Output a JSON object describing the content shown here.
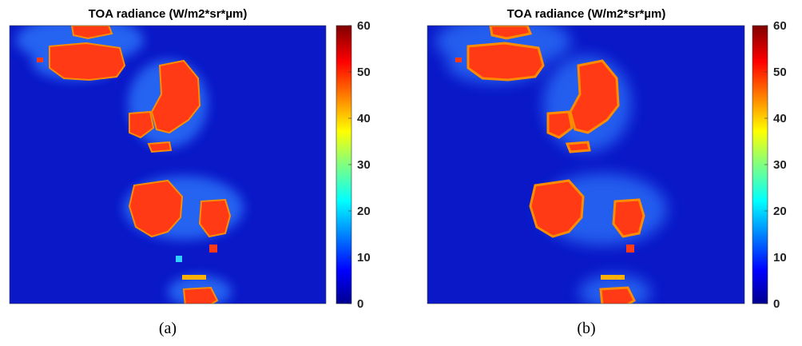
{
  "chart_data": [
    {
      "type": "heatmap",
      "title": "TOA radiance (W/m2*sr*µm)",
      "panel_label": "(a)",
      "colorbar": {
        "colormap": "jet",
        "range": [
          0,
          60
        ],
        "ticks": [
          "0",
          "10",
          "20",
          "30",
          "40",
          "50",
          "60"
        ]
      },
      "background_value": 5,
      "grid": false,
      "regions_description": "Bright cloud patches (~50 W/m2*sr*µm) on a dark ocean background (~3-8 W/m2*sr*µm)"
    },
    {
      "type": "heatmap",
      "title": "TOA radiance (W/m2*sr*µm)",
      "panel_label": "(b)",
      "colorbar": {
        "colormap": "jet",
        "range": [
          0,
          60
        ],
        "ticks": [
          "0",
          "10",
          "20",
          "30",
          "40",
          "50",
          "60"
        ]
      },
      "background_value": 5,
      "grid": false,
      "regions_description": "Same scene at coarser resolution (pixelated), cloud patches ~50 W/m2*sr*µm"
    }
  ],
  "colors": {
    "background_low": "#0a18c8",
    "glow": "#2f7bff",
    "cloud_high": "#ff3a14",
    "cloud_edge": "#ff8c00"
  }
}
